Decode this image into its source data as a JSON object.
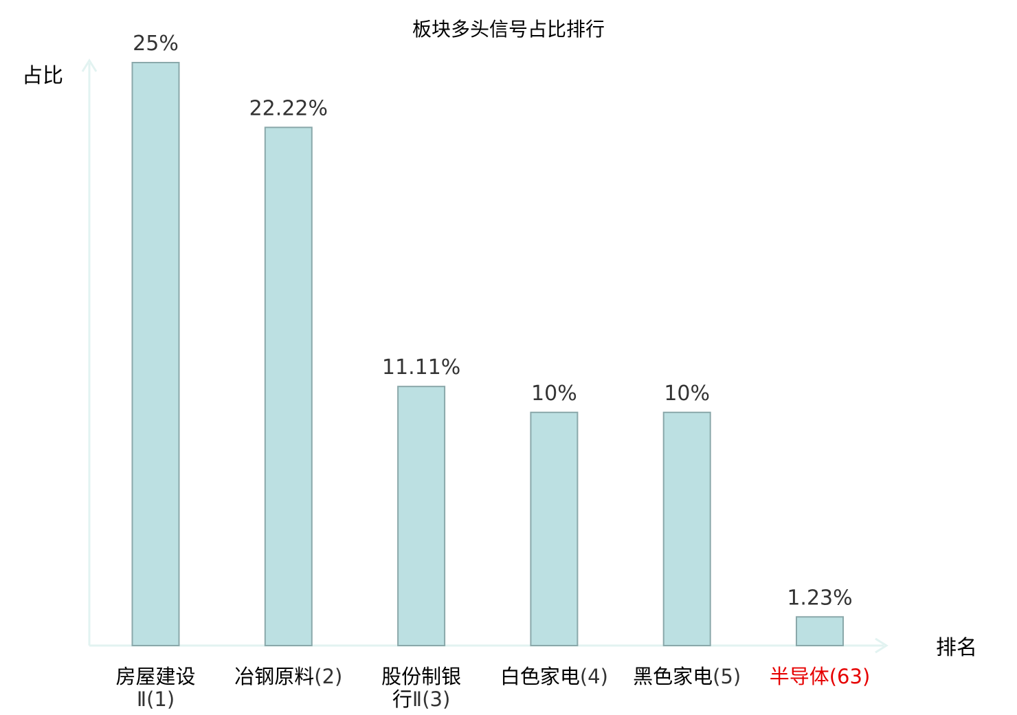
{
  "chart_data": {
    "type": "bar",
    "title": "板块多头信号占比排行",
    "ylabel": "占比",
    "xlabel": "排名",
    "ylim": [
      0,
      25
    ],
    "grid": false,
    "categories": [
      {
        "lines": [
          {
            "name": "房屋建设",
            "rank": ""
          },
          {
            "name": "",
            "rank": "Ⅱ(1)"
          }
        ],
        "highlight": false
      },
      {
        "lines": [
          {
            "name": "冶钢原料",
            "rank": "(2)"
          }
        ],
        "highlight": false
      },
      {
        "lines": [
          {
            "name": "股份制银",
            "rank": ""
          },
          {
            "name": "行",
            "rank": "Ⅱ(3)"
          }
        ],
        "highlight": false
      },
      {
        "lines": [
          {
            "name": "白色家电",
            "rank": "(4)"
          }
        ],
        "highlight": false
      },
      {
        "lines": [
          {
            "name": "黑色家电",
            "rank": "(5)"
          }
        ],
        "highlight": false
      },
      {
        "lines": [
          {
            "name": "半导体",
            "rank": "(63)"
          }
        ],
        "highlight": true
      }
    ],
    "values": [
      25,
      22.22,
      11.11,
      10,
      10,
      1.23
    ],
    "value_labels": [
      "25%",
      "22.22%",
      "11.11%",
      "10%",
      "10%",
      "1.23%"
    ],
    "colors": {
      "bar_fill": "#bce0e2",
      "bar_stroke": "#8aa8aa",
      "axis": "#e2f3f1",
      "highlight": "#e60000",
      "value_text": "#333333"
    }
  }
}
